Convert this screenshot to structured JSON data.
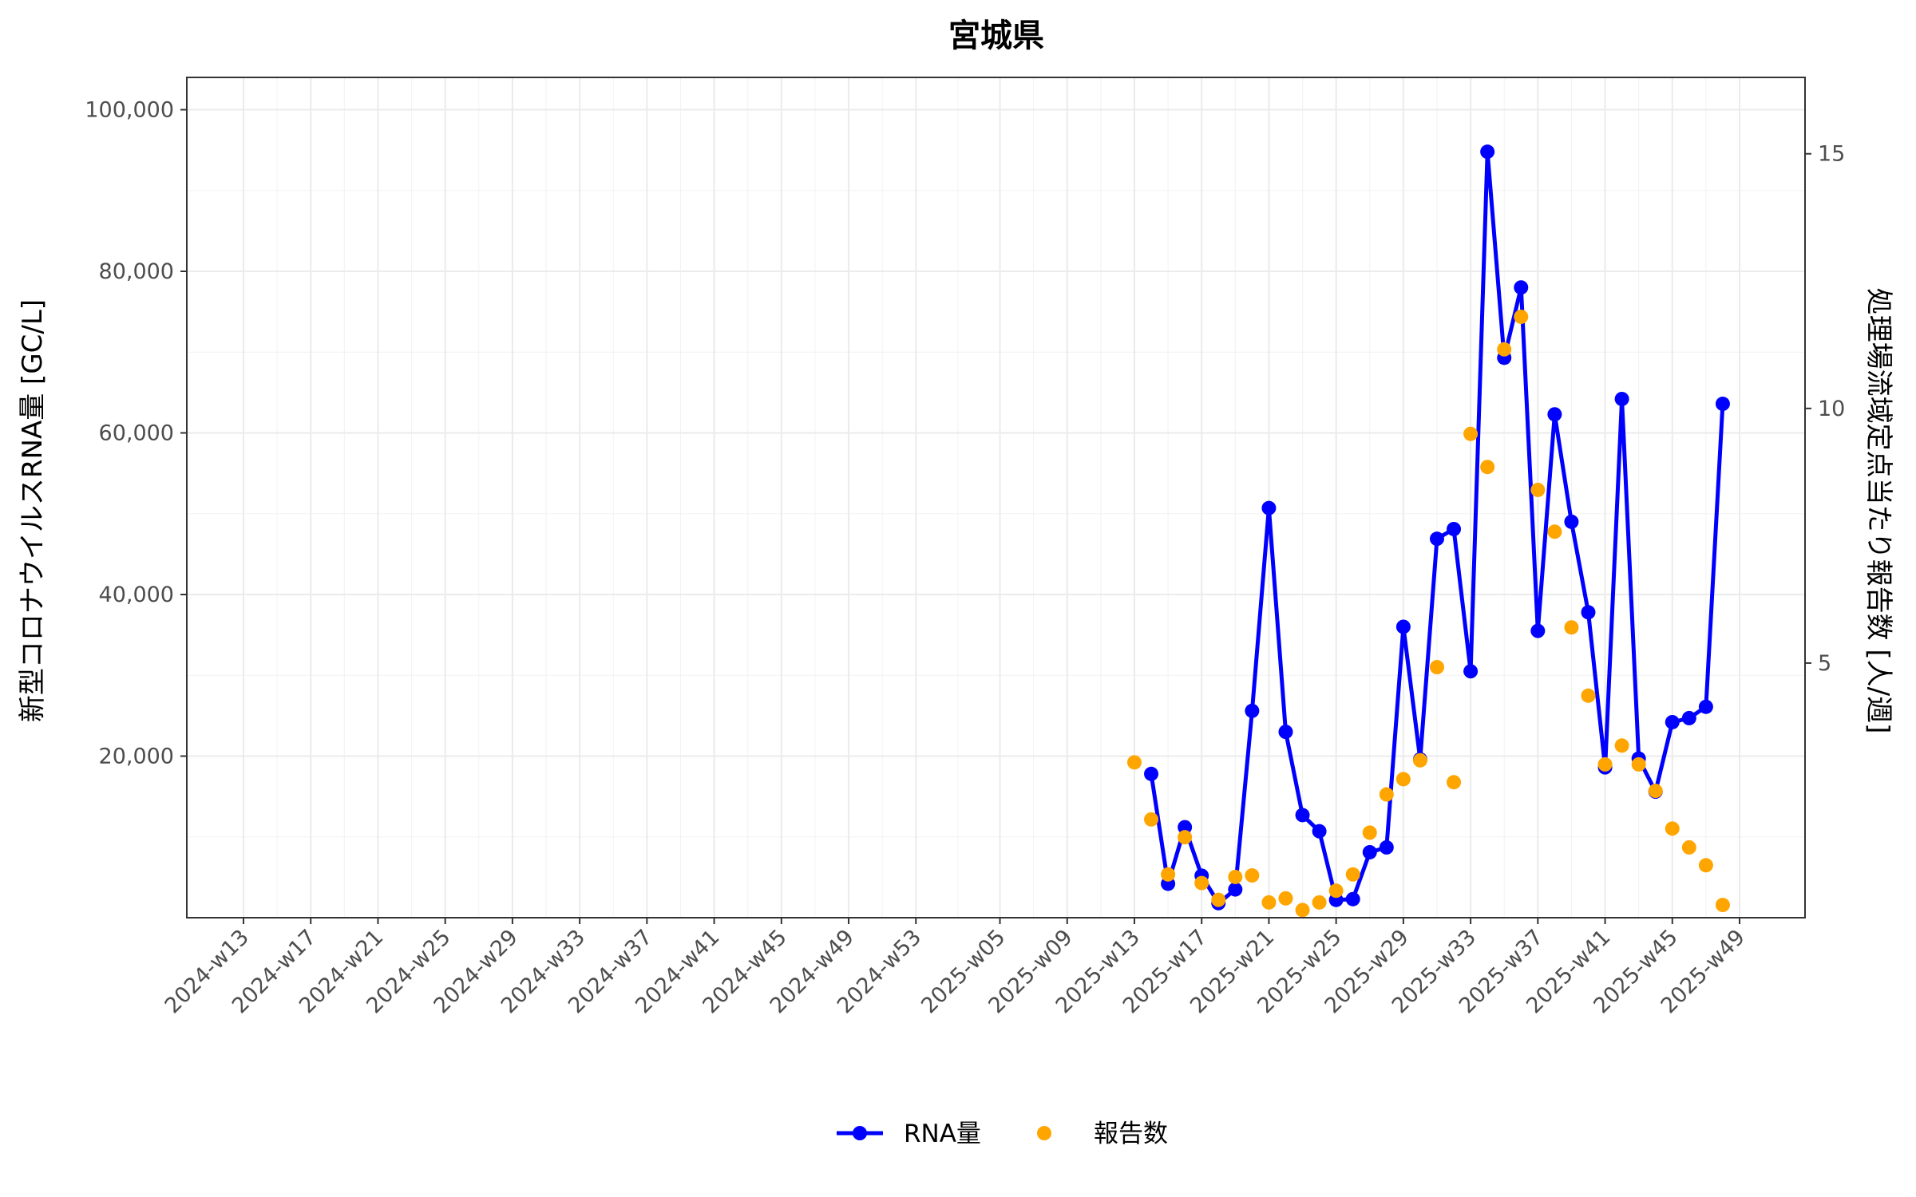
{
  "chart_data": {
    "type": "line",
    "title": "宮城県",
    "ylabel": "新型コロナウイルスRNA量 [GC/L]",
    "ylabel_right": "処理場流域定点当たり報告数 [人/週]",
    "ylim": [
      0,
      104000
    ],
    "ylim_right": [
      0,
      16.5
    ],
    "y_ticks": [
      "20,000",
      "40,000",
      "60,000",
      "80,000",
      "100,000"
    ],
    "y_tick_values": [
      20000,
      40000,
      60000,
      80000,
      100000
    ],
    "y_right_ticks": [
      "5",
      "10",
      "15"
    ],
    "y_right_tick_values": [
      5,
      10,
      15
    ],
    "x_ticks": [
      "2024-w13",
      "2024-w17",
      "2024-w21",
      "2024-w25",
      "2024-w29",
      "2024-w33",
      "2024-w37",
      "2024-w41",
      "2024-w45",
      "2024-w49",
      "2024-w53",
      "2025-w05",
      "2025-w09",
      "2025-w13",
      "2025-w17",
      "2025-w21",
      "2025-w25",
      "2025-w29",
      "2025-w33",
      "2025-w37",
      "2025-w41",
      "2025-w45",
      "2025-w49"
    ],
    "grid": true,
    "legend_position": "bottom",
    "colors": {
      "rna": "#0000ff",
      "reports": "#ffa500"
    },
    "series": [
      {
        "name": "RNA量",
        "axis": "left",
        "style": "line+points",
        "x": [
          "2025-w14",
          "2025-w15",
          "2025-w16",
          "2025-w17",
          "2025-w18",
          "2025-w19",
          "2025-w20",
          "2025-w21",
          "2025-w22",
          "2025-w23",
          "2025-w24",
          "2025-w25",
          "2025-w26",
          "2025-w27",
          "2025-w28",
          "2025-w29",
          "2025-w30",
          "2025-w31",
          "2025-w32",
          "2025-w33",
          "2025-w34",
          "2025-w35",
          "2025-w36",
          "2025-w37",
          "2025-w38",
          "2025-w39",
          "2025-w40",
          "2025-w41",
          "2025-w42",
          "2025-w43",
          "2025-w44",
          "2025-w45",
          "2025-w46",
          "2025-w47",
          "2025-w48"
        ],
        "values": [
          17800,
          4200,
          11200,
          5200,
          1800,
          3500,
          25600,
          50700,
          23000,
          12700,
          10700,
          2200,
          2300,
          8100,
          8700,
          36000,
          19600,
          46900,
          48100,
          30500,
          94800,
          69300,
          78000,
          35500,
          62300,
          49000,
          37800,
          18600,
          64200,
          19700,
          15600,
          24200,
          24700,
          26100,
          63600
        ]
      },
      {
        "name": "報告数",
        "axis": "right",
        "style": "points",
        "x": [
          "2025-w13",
          "2025-w14",
          "2025-w15",
          "2025-w16",
          "2025-w17",
          "2025-w18",
          "2025-w19",
          "2025-w20",
          "2025-w21",
          "2025-w22",
          "2025-w23",
          "2025-w24",
          "2025-w25",
          "2025-w26",
          "2025-w27",
          "2025-w28",
          "2025-w29",
          "2025-w30",
          "2025-w31",
          "2025-w32",
          "2025-w33",
          "2025-w34",
          "2025-w35",
          "2025-w36",
          "2025-w37",
          "2025-w38",
          "2025-w39",
          "2025-w40",
          "2025-w41",
          "2025-w42",
          "2025-w43",
          "2025-w44",
          "2025-w45",
          "2025-w46",
          "2025-w47",
          "2025-w48"
        ],
        "values": [
          3.05,
          1.93,
          0.85,
          1.58,
          0.68,
          0.35,
          0.8,
          0.83,
          0.3,
          0.38,
          0.15,
          0.3,
          0.53,
          0.85,
          1.67,
          2.42,
          2.72,
          3.09,
          4.92,
          2.66,
          9.5,
          8.85,
          11.16,
          11.8,
          8.4,
          7.58,
          5.7,
          4.36,
          3.01,
          3.38,
          3.01,
          2.49,
          1.75,
          1.38,
          1.03,
          0.25
        ]
      }
    ]
  }
}
